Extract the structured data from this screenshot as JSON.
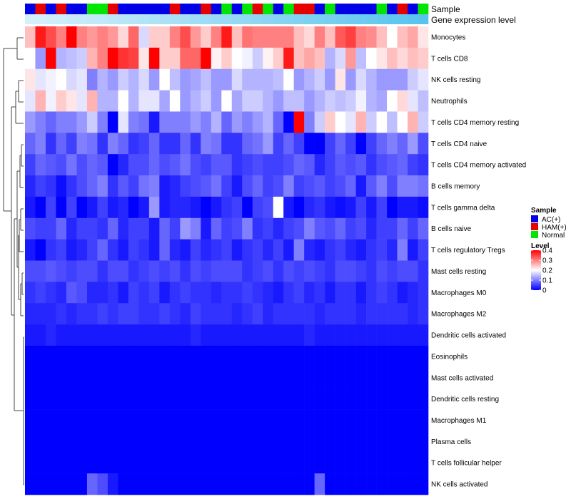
{
  "chart_data": {
    "type": "heatmap",
    "title": "",
    "annotation_rows": [
      {
        "name": "Sample",
        "label": "Sample"
      },
      {
        "name": "Gene expression level",
        "label": "Gene expression level"
      }
    ],
    "sample_groups": [
      "AC",
      "HAM",
      "AC",
      "HAM",
      "AC",
      "AC",
      "N",
      "N",
      "HAM",
      "AC",
      "AC",
      "AC",
      "AC",
      "AC",
      "HAM",
      "AC",
      "AC",
      "HAM",
      "AC",
      "N",
      "AC",
      "N",
      "HAM",
      "N",
      "AC",
      "N",
      "HAM",
      "HAM",
      "AC",
      "N",
      "AC",
      "AC",
      "AC",
      "AC",
      "N",
      "AC",
      "HAM",
      "AC",
      "N"
    ],
    "legend": {
      "sample_title": "Sample",
      "sample_entries": [
        {
          "key": "AC",
          "label": "AC(+)",
          "color": "#0000e6"
        },
        {
          "key": "HAM",
          "label": "HAM(+)",
          "color": "#e60000"
        },
        {
          "key": "N",
          "label": "Normal",
          "color": "#00e600"
        }
      ],
      "level_title": "Level",
      "level_ticks": [
        "0.4",
        "0.3",
        "0.2",
        "0.1",
        "0"
      ],
      "level_range": [
        0,
        0.4
      ]
    },
    "color_scale": {
      "low": "#0000ff",
      "mid": "#ffffff",
      "high": "#ff0000",
      "min": 0,
      "mid_value": 0.2,
      "max": 0.4
    },
    "rows": [
      {
        "label": "Monocytes",
        "values": [
          0.25,
          0.38,
          0.34,
          0.3,
          0.4,
          0.3,
          0.28,
          0.3,
          0.28,
          0.23,
          0.32,
          0.17,
          0.24,
          0.24,
          0.3,
          0.34,
          0.28,
          0.24,
          0.3,
          0.38,
          0.25,
          0.31,
          0.3,
          0.3,
          0.3,
          0.3,
          0.25,
          0.23,
          0.3,
          0.25,
          0.33,
          0.35,
          0.3,
          0.29,
          0.25,
          0.2,
          0.25,
          0.27,
          0.22
        ]
      },
      {
        "label": "T cells CD8",
        "values": [
          0.2,
          0.12,
          0.4,
          0.14,
          0.15,
          0.16,
          0.26,
          0.3,
          0.4,
          0.36,
          0.35,
          0.22,
          0.4,
          0.24,
          0.24,
          0.32,
          0.32,
          0.4,
          0.21,
          0.24,
          0.2,
          0.19,
          0.16,
          0.21,
          0.24,
          0.38,
          0.25,
          0.27,
          0.25,
          0.14,
          0.17,
          0.28,
          0.15,
          0.2,
          0.22,
          0.25,
          0.23,
          0.25,
          0.24
        ]
      },
      {
        "label": "NK cells resting",
        "values": [
          0.22,
          0.18,
          0.19,
          0.2,
          0.17,
          0.18,
          0.1,
          0.14,
          0.12,
          0.16,
          0.14,
          0.17,
          0.12,
          0.2,
          0.15,
          0.12,
          0.13,
          0.15,
          0.12,
          0.12,
          0.17,
          0.14,
          0.14,
          0.14,
          0.15,
          0.2,
          0.12,
          0.14,
          0.16,
          0.12,
          0.22,
          0.12,
          0.17,
          0.14,
          0.12,
          0.12,
          0.12,
          0.16,
          0.18
        ]
      },
      {
        "label": "Neutrophils",
        "values": [
          0.18,
          0.26,
          0.19,
          0.24,
          0.22,
          0.18,
          0.26,
          0.14,
          0.14,
          0.2,
          0.14,
          0.18,
          0.18,
          0.13,
          0.2,
          0.12,
          0.14,
          0.16,
          0.12,
          0.2,
          0.13,
          0.16,
          0.16,
          0.14,
          0.12,
          0.15,
          0.15,
          0.12,
          0.14,
          0.16,
          0.15,
          0.16,
          0.19,
          0.14,
          0.13,
          0.2,
          0.23,
          0.18,
          0.15
        ]
      },
      {
        "label": "T cells CD4 memory resting",
        "values": [
          0.12,
          0.1,
          0.08,
          0.1,
          0.1,
          0.12,
          0.16,
          0.1,
          0.0,
          0.18,
          0.1,
          0.09,
          0.02,
          0.1,
          0.1,
          0.1,
          0.12,
          0.1,
          0.14,
          0.08,
          0.12,
          0.1,
          0.12,
          0.14,
          0.08,
          0.0,
          0.4,
          0.1,
          0.16,
          0.24,
          0.2,
          0.18,
          0.26,
          0.16,
          0.2,
          0.15,
          0.2,
          0.26,
          0.16
        ]
      },
      {
        "label": "T cells CD4 naive",
        "values": [
          0.08,
          0.1,
          0.04,
          0.08,
          0.05,
          0.1,
          0.09,
          0.04,
          0.1,
          0.08,
          0.04,
          0.05,
          0.08,
          0.04,
          0.04,
          0.08,
          0.04,
          0.1,
          0.09,
          0.04,
          0.04,
          0.08,
          0.09,
          0.12,
          0.05,
          0.08,
          0.05,
          0.0,
          0.0,
          0.05,
          0.08,
          0.05,
          0.0,
          0.05,
          0.08,
          0.1,
          0.08,
          0.12,
          0.06
        ]
      },
      {
        "label": "T cells CD4 memory activated",
        "values": [
          0.05,
          0.08,
          0.07,
          0.06,
          0.09,
          0.06,
          0.08,
          0.07,
          0.0,
          0.03,
          0.06,
          0.06,
          0.08,
          0.06,
          0.07,
          0.09,
          0.06,
          0.05,
          0.07,
          0.07,
          0.04,
          0.05,
          0.06,
          0.05,
          0.05,
          0.06,
          0.08,
          0.07,
          0.03,
          0.05,
          0.07,
          0.06,
          0.07,
          0.04,
          0.06,
          0.07,
          0.08,
          0.05,
          0.04
        ]
      },
      {
        "label": "B cells memory",
        "values": [
          0.03,
          0.05,
          0.04,
          0.01,
          0.04,
          0.06,
          0.08,
          0.1,
          0.04,
          0.07,
          0.05,
          0.09,
          0.1,
          0.02,
          0.03,
          0.05,
          0.06,
          0.07,
          0.09,
          0.05,
          0.02,
          0.06,
          0.08,
          0.05,
          0.06,
          0.1,
          0.05,
          0.06,
          0.07,
          0.05,
          0.06,
          0.08,
          0.02,
          0.07,
          0.1,
          0.06,
          0.1,
          0.1,
          0.09
        ]
      },
      {
        "label": "T cells gamma delta",
        "values": [
          0.02,
          0.0,
          0.05,
          0.0,
          0.05,
          0.0,
          0.02,
          0.05,
          0.02,
          0.03,
          0.0,
          0.02,
          0.12,
          0.02,
          0.03,
          0.03,
          0.02,
          0.0,
          0.02,
          0.04,
          0.05,
          0.0,
          0.05,
          0.06,
          0.2,
          0.02,
          0.0,
          0.03,
          0.04,
          0.02,
          0.01,
          0.02,
          0.05,
          0.02,
          0.05,
          0.0,
          0.02,
          0.02,
          0.01
        ]
      },
      {
        "label": "B cells naive",
        "values": [
          0.06,
          0.05,
          0.05,
          0.08,
          0.03,
          0.05,
          0.05,
          0.04,
          0.08,
          0.03,
          0.05,
          0.05,
          0.02,
          0.08,
          0.05,
          0.12,
          0.1,
          0.02,
          0.08,
          0.05,
          0.06,
          0.1,
          0.04,
          0.05,
          0.03,
          0.05,
          0.06,
          0.1,
          0.07,
          0.06,
          0.08,
          0.05,
          0.06,
          0.03,
          0.05,
          0.05,
          0.08,
          0.05,
          0.08
        ]
      },
      {
        "label": "T cells regulatory  Tregs",
        "values": [
          0.02,
          0.0,
          0.04,
          0.05,
          0.02,
          0.03,
          0.05,
          0.08,
          0.04,
          0.02,
          0.05,
          0.04,
          0.02,
          0.08,
          0.03,
          0.02,
          0.05,
          0.03,
          0.04,
          0.05,
          0.02,
          0.04,
          0.05,
          0.03,
          0.05,
          0.02,
          0.1,
          0.03,
          0.02,
          0.04,
          0.05,
          0.03,
          0.02,
          0.04,
          0.05,
          0.03,
          0.1,
          0.02,
          0.05
        ]
      },
      {
        "label": "Mast cells resting",
        "values": [
          0.06,
          0.06,
          0.07,
          0.06,
          0.05,
          0.06,
          0.06,
          0.04,
          0.06,
          0.06,
          0.04,
          0.05,
          0.06,
          0.05,
          0.06,
          0.04,
          0.06,
          0.05,
          0.06,
          0.06,
          0.06,
          0.04,
          0.05,
          0.06,
          0.04,
          0.06,
          0.05,
          0.06,
          0.05,
          0.04,
          0.06,
          0.06,
          0.05,
          0.04,
          0.06,
          0.05,
          0.06,
          0.06,
          0.04
        ]
      },
      {
        "label": "Macrophages M0",
        "values": [
          0.04,
          0.05,
          0.04,
          0.03,
          0.07,
          0.06,
          0.03,
          0.03,
          0.04,
          0.02,
          0.05,
          0.04,
          0.05,
          0.02,
          0.04,
          0.05,
          0.04,
          0.04,
          0.03,
          0.04,
          0.04,
          0.05,
          0.04,
          0.03,
          0.02,
          0.04,
          0.05,
          0.03,
          0.04,
          0.02,
          0.04,
          0.04,
          0.02,
          0.04,
          0.05,
          0.04,
          0.02,
          0.03,
          0.04
        ]
      },
      {
        "label": "Macrophages M2",
        "values": [
          0.03,
          0.03,
          0.03,
          0.04,
          0.03,
          0.04,
          0.04,
          0.05,
          0.04,
          0.05,
          0.05,
          0.04,
          0.04,
          0.05,
          0.04,
          0.03,
          0.05,
          0.04,
          0.04,
          0.04,
          0.03,
          0.04,
          0.05,
          0.03,
          0.04,
          0.04,
          0.04,
          0.04,
          0.03,
          0.04,
          0.04,
          0.04,
          0.03,
          0.04,
          0.04,
          0.04,
          0.04,
          0.03,
          0.04
        ]
      },
      {
        "label": "Dendritic cells activated",
        "values": [
          0.02,
          0.02,
          0.03,
          0.02,
          0.02,
          0.02,
          0.02,
          0.02,
          0.02,
          0.02,
          0.02,
          0.02,
          0.02,
          0.02,
          0.02,
          0.02,
          0.03,
          0.02,
          0.02,
          0.02,
          0.02,
          0.02,
          0.02,
          0.02,
          0.02,
          0.02,
          0.02,
          0.03,
          0.02,
          0.02,
          0.02,
          0.02,
          0.02,
          0.02,
          0.02,
          0.02,
          0.02,
          0.02,
          0.02
        ]
      },
      {
        "label": "Eosinophils",
        "values": [
          0,
          0,
          0,
          0,
          0,
          0,
          0,
          0,
          0,
          0,
          0,
          0,
          0,
          0,
          0,
          0,
          0,
          0,
          0,
          0,
          0,
          0,
          0,
          0,
          0,
          0,
          0,
          0,
          0,
          0,
          0,
          0,
          0,
          0,
          0,
          0,
          0,
          0,
          0
        ]
      },
      {
        "label": "Mast cells activated",
        "values": [
          0,
          0,
          0,
          0,
          0,
          0,
          0,
          0,
          0,
          0,
          0,
          0,
          0,
          0,
          0,
          0,
          0,
          0,
          0,
          0,
          0,
          0,
          0,
          0,
          0,
          0,
          0,
          0,
          0,
          0,
          0,
          0,
          0,
          0,
          0,
          0,
          0,
          0,
          0
        ]
      },
      {
        "label": "Dendritic cells resting",
        "values": [
          0,
          0,
          0,
          0,
          0,
          0,
          0,
          0,
          0,
          0,
          0,
          0,
          0,
          0,
          0,
          0,
          0,
          0,
          0,
          0,
          0,
          0,
          0,
          0,
          0,
          0,
          0,
          0,
          0,
          0,
          0,
          0,
          0,
          0,
          0,
          0,
          0,
          0,
          0
        ]
      },
      {
        "label": "Macrophages M1",
        "values": [
          0,
          0,
          0,
          0,
          0,
          0,
          0,
          0,
          0,
          0,
          0,
          0,
          0,
          0,
          0,
          0,
          0,
          0,
          0,
          0,
          0,
          0,
          0,
          0,
          0,
          0,
          0,
          0,
          0,
          0,
          0,
          0,
          0,
          0,
          0,
          0,
          0,
          0,
          0
        ]
      },
      {
        "label": "Plasma cells",
        "values": [
          0,
          0,
          0,
          0,
          0,
          0,
          0,
          0,
          0,
          0,
          0,
          0,
          0,
          0,
          0,
          0,
          0,
          0,
          0,
          0,
          0,
          0,
          0,
          0,
          0,
          0,
          0,
          0,
          0,
          0,
          0,
          0,
          0,
          0,
          0,
          0,
          0,
          0,
          0
        ]
      },
      {
        "label": "T cells follicular helper",
        "values": [
          0,
          0,
          0,
          0,
          0,
          0,
          0,
          0,
          0,
          0,
          0,
          0,
          0,
          0,
          0,
          0,
          0,
          0,
          0,
          0,
          0,
          0,
          0,
          0,
          0,
          0,
          0,
          0,
          0,
          0,
          0,
          0,
          0,
          0,
          0,
          0,
          0,
          0,
          0
        ]
      },
      {
        "label": "NK cells activated",
        "values": [
          0,
          0,
          0,
          0,
          0,
          0,
          0.08,
          0.06,
          0.02,
          0,
          0,
          0,
          0,
          0,
          0,
          0,
          0,
          0,
          0,
          0,
          0,
          0,
          0,
          0,
          0,
          0,
          0,
          0,
          0.08,
          0,
          0,
          0,
          0,
          0,
          0,
          0,
          0,
          0,
          0
        ]
      }
    ]
  }
}
